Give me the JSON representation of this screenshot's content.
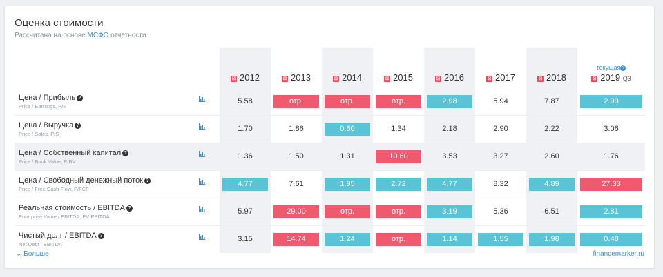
{
  "header": {
    "title": "Оценка стоимости",
    "subtitle_prefix": "Рассчитана на основе ",
    "subtitle_highlight": "МСФО",
    "subtitle_suffix": " отчетности"
  },
  "columns": {
    "current_label": "текущая",
    "years": [
      "2012",
      "2013",
      "2014",
      "2015",
      "2016",
      "2017",
      "2018",
      "2019"
    ],
    "last_suffix": "Q3"
  },
  "rows": [
    {
      "name": "Цена / Прибыль",
      "sub": "Price / Earnings, P/E",
      "cells": [
        {
          "v": "5.58",
          "c": ""
        },
        {
          "v": "отр.",
          "c": "red"
        },
        {
          "v": "отр.",
          "c": "red"
        },
        {
          "v": "отр.",
          "c": "red"
        },
        {
          "v": "2.98",
          "c": "blue"
        },
        {
          "v": "5.94",
          "c": ""
        },
        {
          "v": "7.87",
          "c": ""
        },
        {
          "v": "2.99",
          "c": "blue"
        }
      ]
    },
    {
      "name": "Цена / Выручка",
      "sub": "Price / Sales, P/S",
      "cells": [
        {
          "v": "1.70",
          "c": ""
        },
        {
          "v": "1.86",
          "c": ""
        },
        {
          "v": "0.60",
          "c": "blue"
        },
        {
          "v": "1.34",
          "c": ""
        },
        {
          "v": "2.18",
          "c": ""
        },
        {
          "v": "2.90",
          "c": ""
        },
        {
          "v": "2.22",
          "c": ""
        },
        {
          "v": "3.06",
          "c": ""
        }
      ]
    },
    {
      "name": "Цена / Собственный капитал",
      "sub": "Price / Book Value, P/BV",
      "cells": [
        {
          "v": "1.36",
          "c": ""
        },
        {
          "v": "1.50",
          "c": ""
        },
        {
          "v": "1.31",
          "c": ""
        },
        {
          "v": "10.60",
          "c": "red"
        },
        {
          "v": "3.53",
          "c": ""
        },
        {
          "v": "3.27",
          "c": ""
        },
        {
          "v": "2.60",
          "c": ""
        },
        {
          "v": "1.76",
          "c": ""
        }
      ]
    },
    {
      "name": "Цена / Свободный денежный поток",
      "sub": "Price / Free Cash Flow, P/FCF",
      "cells": [
        {
          "v": "4.77",
          "c": "blue"
        },
        {
          "v": "7.61",
          "c": ""
        },
        {
          "v": "1.95",
          "c": "blue"
        },
        {
          "v": "2.72",
          "c": "blue"
        },
        {
          "v": "4.77",
          "c": "blue"
        },
        {
          "v": "8.32",
          "c": ""
        },
        {
          "v": "4.89",
          "c": "blue"
        },
        {
          "v": "27.33",
          "c": "red"
        }
      ]
    },
    {
      "name": "Реальная стоимость / EBITDA",
      "sub": "Enterprise Value / EBITDA, EV/EBITDA",
      "cells": [
        {
          "v": "5.97",
          "c": ""
        },
        {
          "v": "29.00",
          "c": "red"
        },
        {
          "v": "отр.",
          "c": "red"
        },
        {
          "v": "отр.",
          "c": "red"
        },
        {
          "v": "3.19",
          "c": "blue"
        },
        {
          "v": "5.36",
          "c": ""
        },
        {
          "v": "6.51",
          "c": ""
        },
        {
          "v": "2.81",
          "c": "blue"
        }
      ]
    },
    {
      "name": "Чистый долг / EBITDA",
      "sub": "Net Debt / EBITDA",
      "cells": [
        {
          "v": "3.15",
          "c": ""
        },
        {
          "v": "14.74",
          "c": "red"
        },
        {
          "v": "1.24",
          "c": "blue"
        },
        {
          "v": "отр.",
          "c": "red"
        },
        {
          "v": "1.14",
          "c": "blue"
        },
        {
          "v": "1.55",
          "c": "blue"
        },
        {
          "v": "1.98",
          "c": "blue"
        },
        {
          "v": "0.48",
          "c": "blue"
        }
      ]
    }
  ],
  "footer": {
    "more_label": "Больше",
    "brand": "financemarker.ru"
  },
  "colors": {
    "accent": "#3a8fd6",
    "good": "#5bc3d6",
    "bad": "#ef5a6f"
  }
}
